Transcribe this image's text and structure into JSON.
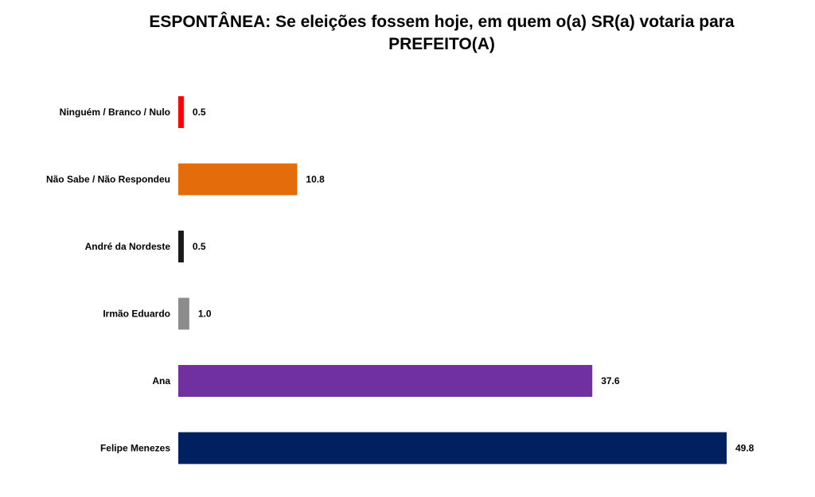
{
  "chart_data": {
    "type": "bar",
    "orientation": "horizontal",
    "title": "ESPONTÂNEA: Se eleições fossem hoje, em quem o(a) SR(a) votaria para PREFEITO(A)",
    "categories": [
      "Ninguém / Branco / Nulo",
      "Não Sabe / Não Respondeu",
      "André da Nordeste",
      "Irmão Eduardo",
      "Ana",
      "Felipe Menezes"
    ],
    "values": [
      0.5,
      10.8,
      0.5,
      1.0,
      37.6,
      49.8
    ],
    "value_labels": [
      "0.5",
      "10.8",
      "0.5",
      "1.0",
      "37.6",
      "49.8"
    ],
    "colors": [
      "#ff0000",
      "#e46c0a",
      "#1a1a1a",
      "#8c8c8c",
      "#7030a0",
      "#002060"
    ],
    "xlim": [
      0,
      49.8
    ],
    "grid": false,
    "legend": "none",
    "xlabel": "",
    "ylabel": ""
  }
}
